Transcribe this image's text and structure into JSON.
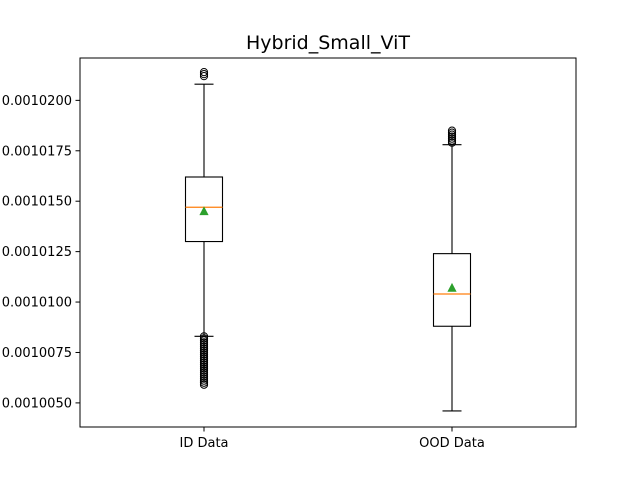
{
  "chart_data": {
    "type": "boxplot",
    "title": "Hybrid_Small_ViT",
    "xlabel": "",
    "ylabel": "",
    "categories": [
      "ID Data",
      "OOD Data"
    ],
    "ylim": [
      0.001003805,
      0.0010221
    ],
    "y_ticks": [
      0.001005,
      0.0010075,
      0.00101,
      0.0010125,
      0.001015,
      0.0010175,
      0.00102
    ],
    "y_tick_labels": [
      "0.0010050",
      "0.0010075",
      "0.0010100",
      "0.0010125",
      "0.0010150",
      "0.0010175",
      "0.0010200"
    ],
    "grid": false,
    "colors": {
      "box": "#000000",
      "median": "#ff7f0e",
      "mean": "#2ca02c",
      "flier": "#000000"
    },
    "boxes": [
      {
        "name": "ID Data",
        "whisker_low": 0.0010083,
        "q1": 0.001013,
        "median": 0.0010147,
        "q3": 0.0010162,
        "whisker_high": 0.0010208,
        "mean": 0.0010145,
        "outliers": [
          0.0010212,
          0.0010213,
          0.0010214,
          0.0010083,
          0.0010082,
          0.0010081,
          0.001008,
          0.0010079,
          0.0010078,
          0.0010077,
          0.0010076,
          0.0010075,
          0.0010074,
          0.0010073,
          0.0010072,
          0.0010071,
          0.001007,
          0.0010069,
          0.0010068,
          0.0010067,
          0.0010066,
          0.0010065,
          0.0010064,
          0.0010063,
          0.0010062,
          0.0010061,
          0.001006,
          0.0010059
        ]
      },
      {
        "name": "OOD Data",
        "whisker_low": 0.0010046,
        "q1": 0.0010088,
        "median": 0.0010104,
        "q3": 0.0010124,
        "whisker_high": 0.0010178,
        "mean": 0.0010107,
        "outliers": [
          0.0010179,
          0.001018,
          0.0010181,
          0.0010182,
          0.0010183,
          0.0010184,
          0.0010185
        ]
      }
    ]
  }
}
